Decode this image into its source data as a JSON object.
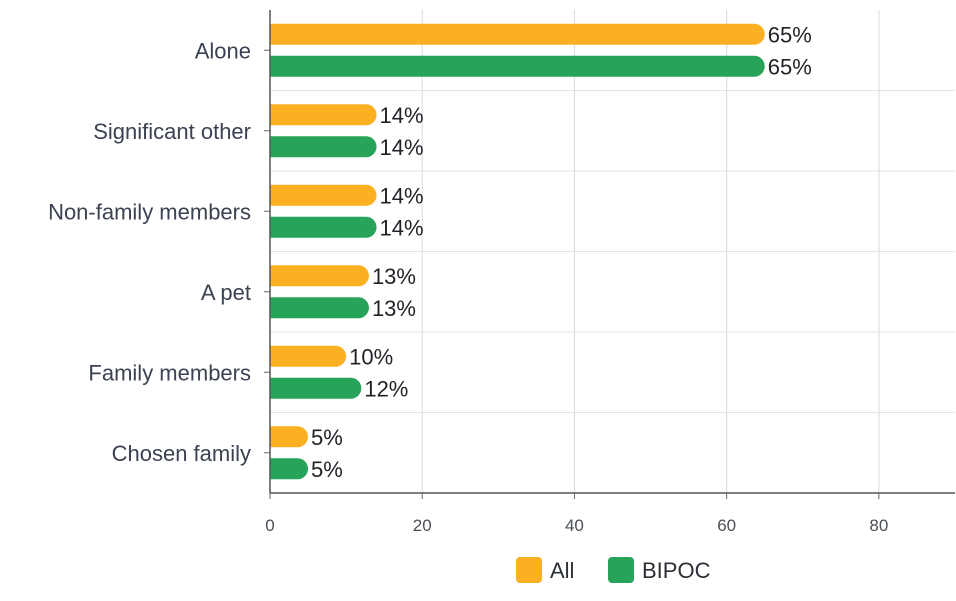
{
  "chart_data": {
    "type": "bar",
    "orientation": "horizontal",
    "categories": [
      "Alone",
      "Significant other",
      "Non-family members",
      "A pet",
      "Family members",
      "Chosen family"
    ],
    "series": [
      {
        "name": "All",
        "values": [
          65,
          14,
          14,
          13,
          10,
          5
        ],
        "labels": [
          "65%",
          "14%",
          "14%",
          "13%",
          "10%",
          "5%"
        ],
        "color": "#fbb022"
      },
      {
        "name": "BIPOC",
        "values": [
          65,
          14,
          14,
          13,
          12,
          5
        ],
        "labels": [
          "65%",
          "14%",
          "14%",
          "13%",
          "12%",
          "5%"
        ],
        "color": "#27a35a"
      }
    ],
    "xlim": [
      0,
      90
    ],
    "xticks": [
      0,
      20,
      40,
      60,
      80
    ],
    "xtick_labels": [
      "0",
      "20",
      "40",
      "60",
      "80"
    ],
    "grid": true,
    "legend_position": "bottom-center"
  }
}
